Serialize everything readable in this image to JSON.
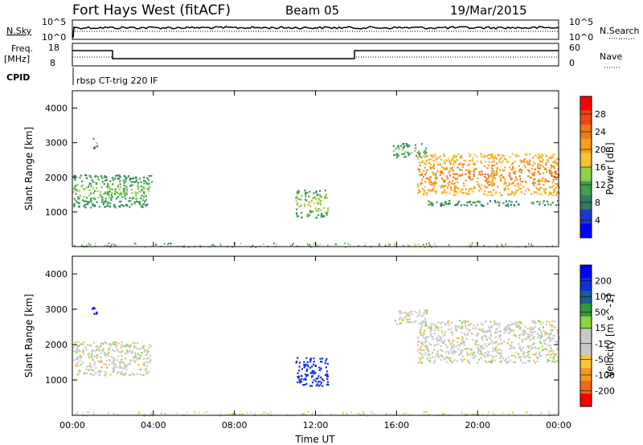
{
  "header": {
    "station": "Fort Hays West (fitACF)",
    "beam": "Beam 05",
    "date": "19/Mar/2015"
  },
  "strips": {
    "nsky_label": "N.Sky",
    "nsky_ticks": [
      "10^5",
      "10^0"
    ],
    "nsearch_label": "N.Search",
    "nsearch_ticks": [
      "10^5",
      "10^0"
    ],
    "freq_label": "Freq.",
    "freq_unit": "[MHz]",
    "freq_ticks": [
      "18",
      "8"
    ],
    "nave_label": "Nave",
    "nave_ticks": [
      "60",
      "0"
    ],
    "cpid_label": "CPID",
    "cpid_text": "rbsp CT-trig 220 IF"
  },
  "colors": {
    "power": [
      "#0000ff",
      "#1e3cc8",
      "#2e7d64",
      "#3fa04a",
      "#8fcf4a",
      "#f7c233",
      "#f5a01e",
      "#f07a18",
      "#e84a12",
      "#ff0000"
    ],
    "velocity": [
      "#0000ff",
      "#0f2fd8",
      "#1a5e8c",
      "#2e9a3a",
      "#8bd446",
      "#c8c8c8",
      "#c8c8c8",
      "#f7c633",
      "#f59a1f",
      "#f06a16",
      "#ff0000"
    ]
  },
  "chart_data": [
    {
      "type": "heatmap",
      "name": "power",
      "xlabel": "",
      "ylabel": "Slant Range [km]",
      "xlim": [
        "00:00",
        "24:00"
      ],
      "ylim": [
        0,
        4500
      ],
      "yticks": [
        "1000",
        "2000",
        "3000",
        "4000"
      ],
      "xticks": [
        "00:00",
        "04:00",
        "08:00",
        "12:00",
        "16:00",
        "20:00",
        "00:00"
      ],
      "colorbar": {
        "label": "Power [dB]",
        "ticks": [
          "4",
          "8",
          "12",
          "16",
          "20",
          "24",
          "28"
        ],
        "range": [
          0,
          30
        ]
      },
      "features": [
        {
          "t0": 0.0,
          "t1": 3.9,
          "r0": 1150,
          "r1": 2100,
          "level": 8
        },
        {
          "t0": 0.95,
          "t1": 1.2,
          "r0": 2850,
          "r1": 3150,
          "level": 8
        },
        {
          "t0": 11.0,
          "t1": 12.6,
          "r0": 850,
          "r1": 1650,
          "level": 10
        },
        {
          "t0": 15.8,
          "t1": 17.5,
          "r0": 2600,
          "r1": 3000,
          "level": 8
        },
        {
          "t0": 17.0,
          "t1": 24.0,
          "r0": 1500,
          "r1": 2700,
          "level": 18
        },
        {
          "t0": 17.5,
          "t1": 24.0,
          "r0": 1200,
          "r1": 1350,
          "level": 6
        }
      ]
    },
    {
      "type": "heatmap",
      "name": "velocity",
      "xlabel": "Time UT",
      "ylabel": "Slant Range [km]",
      "xlim": [
        "00:00",
        "24:00"
      ],
      "ylim": [
        0,
        4500
      ],
      "yticks": [
        "1000",
        "2000",
        "3000",
        "4000"
      ],
      "xticks": [
        "00:00",
        "04:00",
        "08:00",
        "12:00",
        "16:00",
        "20:00",
        "00:00"
      ],
      "colorbar": {
        "label": "Velocity [m s^-1]",
        "ticks": [
          "200",
          "100",
          "50",
          "15",
          "-15",
          "-50",
          "-100",
          "-200"
        ]
      },
      "features": [
        {
          "t0": 0.0,
          "t1": 3.9,
          "r0": 1150,
          "r1": 2100,
          "velocity": 0
        },
        {
          "t0": 0.95,
          "t1": 1.2,
          "r0": 2850,
          "r1": 3150,
          "velocity": 220
        },
        {
          "t0": 11.0,
          "t1": 12.6,
          "r0": 850,
          "r1": 1650,
          "velocity": 180
        },
        {
          "t0": 15.8,
          "t1": 17.5,
          "r0": 2600,
          "r1": 3000,
          "velocity": 0
        },
        {
          "t0": 17.0,
          "t1": 24.0,
          "r0": 1500,
          "r1": 2700,
          "velocity": 0
        }
      ]
    }
  ]
}
